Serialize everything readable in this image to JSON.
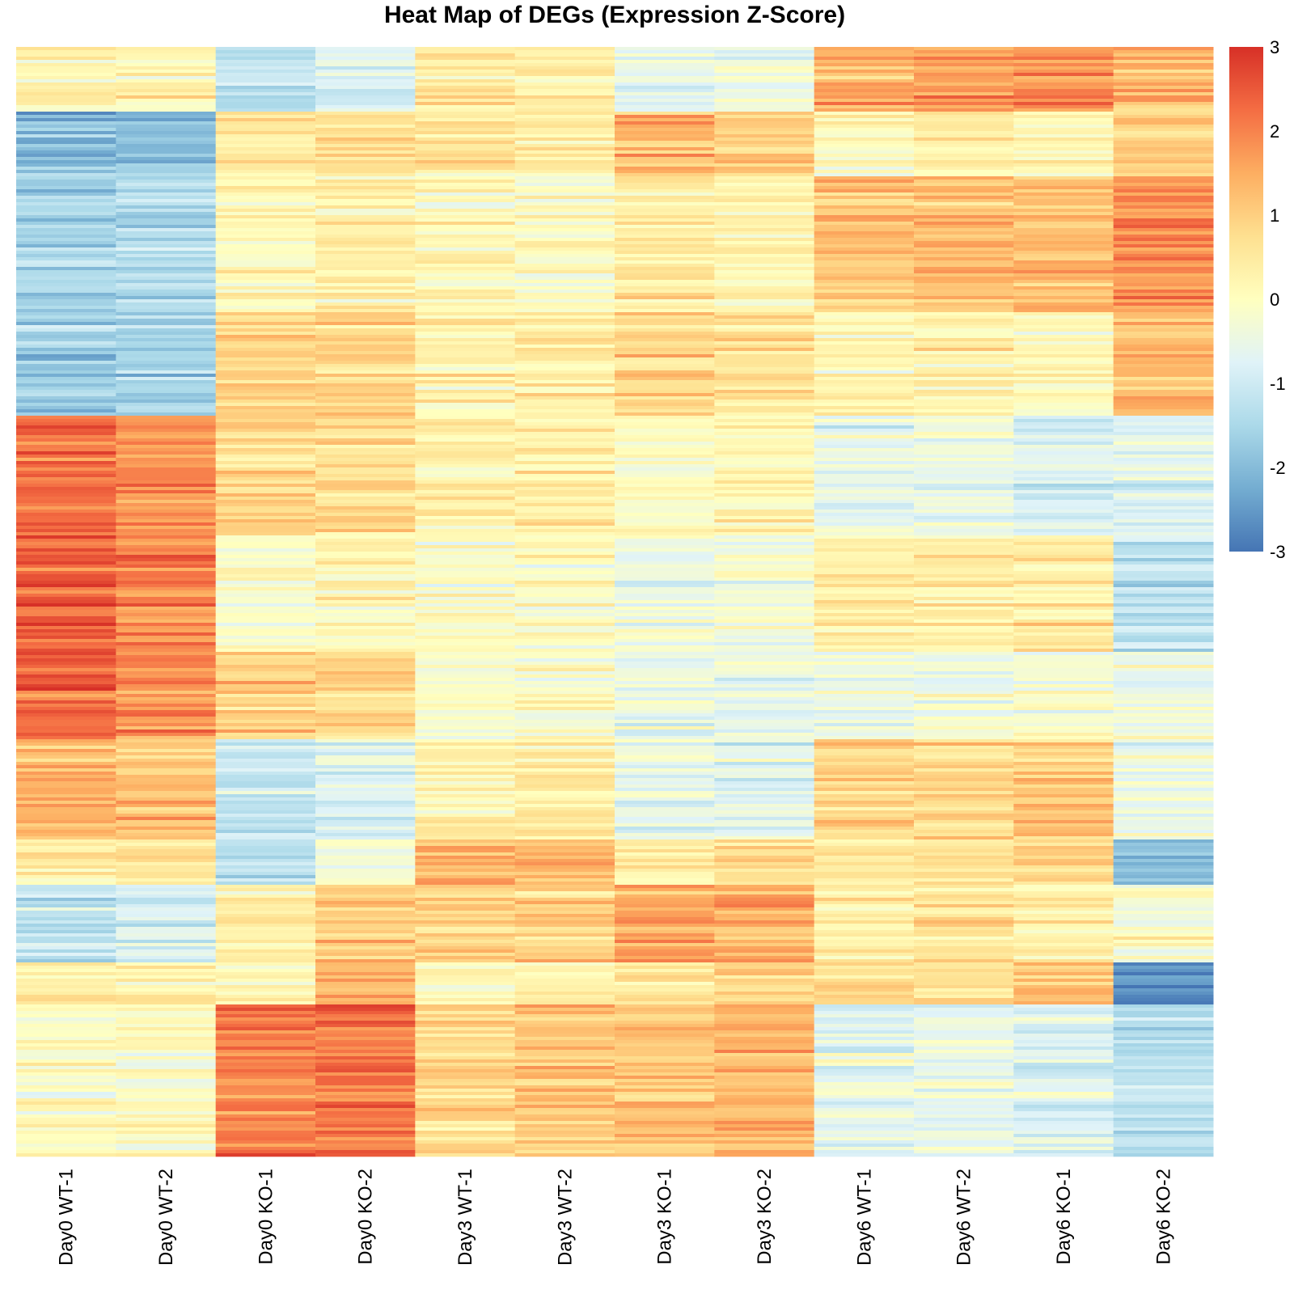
{
  "chart_data": {
    "type": "heatmap",
    "title": "Heat Map of DEGs (Expression Z-Score)",
    "columns": [
      "Day0 WT-1",
      "Day0 WT-2",
      "Day0 KO-1",
      "Day0 KO-2",
      "Day3 WT-1",
      "Day3 WT-2",
      "Day3 KO-1",
      "Day3 KO-2",
      "Day6 WT-1",
      "Day6 WT-2",
      "Day6 KO-1",
      "Day6 KO-2"
    ],
    "color_scale": {
      "min": -3,
      "max": 3,
      "ticks": [
        "3",
        "2",
        "1",
        "0",
        "-1",
        "-2",
        "-3"
      ],
      "colors": [
        "#4575b4",
        "#74add1",
        "#abd9e9",
        "#e0f3f8",
        "#ffffbf",
        "#fee090",
        "#fdae61",
        "#f46d43",
        "#d73027"
      ]
    },
    "row_clusters": [
      {
        "fraction": 0.058,
        "values": [
          0.2,
          0.2,
          -1.4,
          -0.7,
          0.5,
          0.3,
          -0.5,
          -0.4,
          1.4,
          1.5,
          1.8,
          1.4
        ]
      },
      {
        "fraction": 0.06,
        "values": [
          -2.0,
          -2.0,
          0.5,
          0.8,
          0.6,
          0.5,
          1.3,
          1.1,
          0.1,
          0.4,
          0.2,
          1.0
        ]
      },
      {
        "fraction": 0.12,
        "values": [
          -1.6,
          -1.4,
          0.1,
          0.3,
          0.1,
          0.0,
          0.4,
          0.2,
          1.1,
          1.2,
          1.3,
          1.8
        ]
      },
      {
        "fraction": 0.095,
        "values": [
          -1.7,
          -1.5,
          1.0,
          0.9,
          0.3,
          0.4,
          0.8,
          0.7,
          0.2,
          0.3,
          0.1,
          1.3
        ]
      },
      {
        "fraction": 0.108,
        "values": [
          2.2,
          1.8,
          0.8,
          0.7,
          0.4,
          0.4,
          0.1,
          0.2,
          -0.6,
          -0.5,
          -0.8,
          -0.8
        ]
      },
      {
        "fraction": 0.105,
        "values": [
          2.5,
          2.0,
          -0.1,
          0.2,
          -0.1,
          0.0,
          -0.4,
          -0.2,
          0.4,
          0.3,
          0.5,
          -1.2
        ]
      },
      {
        "fraction": 0.078,
        "values": [
          2.3,
          1.8,
          0.9,
          0.8,
          -0.2,
          -0.1,
          -0.5,
          -0.5,
          -0.4,
          -0.4,
          -0.2,
          -0.3
        ]
      },
      {
        "fraction": 0.09,
        "values": [
          1.4,
          1.2,
          -1.0,
          -0.8,
          0.3,
          0.4,
          -0.6,
          -0.7,
          0.9,
          0.8,
          1.1,
          -0.5
        ]
      },
      {
        "fraction": 0.04,
        "values": [
          0.4,
          0.5,
          -1.2,
          -0.1,
          1.4,
          1.3,
          0.5,
          0.7,
          0.4,
          0.6,
          0.8,
          -1.8
        ]
      },
      {
        "fraction": 0.07,
        "values": [
          -1.2,
          -0.9,
          0.4,
          1.0,
          1.0,
          1.0,
          1.6,
          1.5,
          0.4,
          0.6,
          0.3,
          -0.2
        ]
      },
      {
        "fraction": 0.038,
        "values": [
          0.5,
          0.4,
          0.2,
          1.4,
          0.1,
          0.2,
          0.5,
          0.8,
          0.8,
          0.7,
          1.3,
          -2.6
        ]
      },
      {
        "fraction": 0.138,
        "values": [
          0.0,
          0.0,
          2.0,
          2.1,
          0.8,
          1.0,
          1.1,
          1.3,
          -0.6,
          -0.5,
          -0.7,
          -1.3
        ]
      }
    ]
  }
}
